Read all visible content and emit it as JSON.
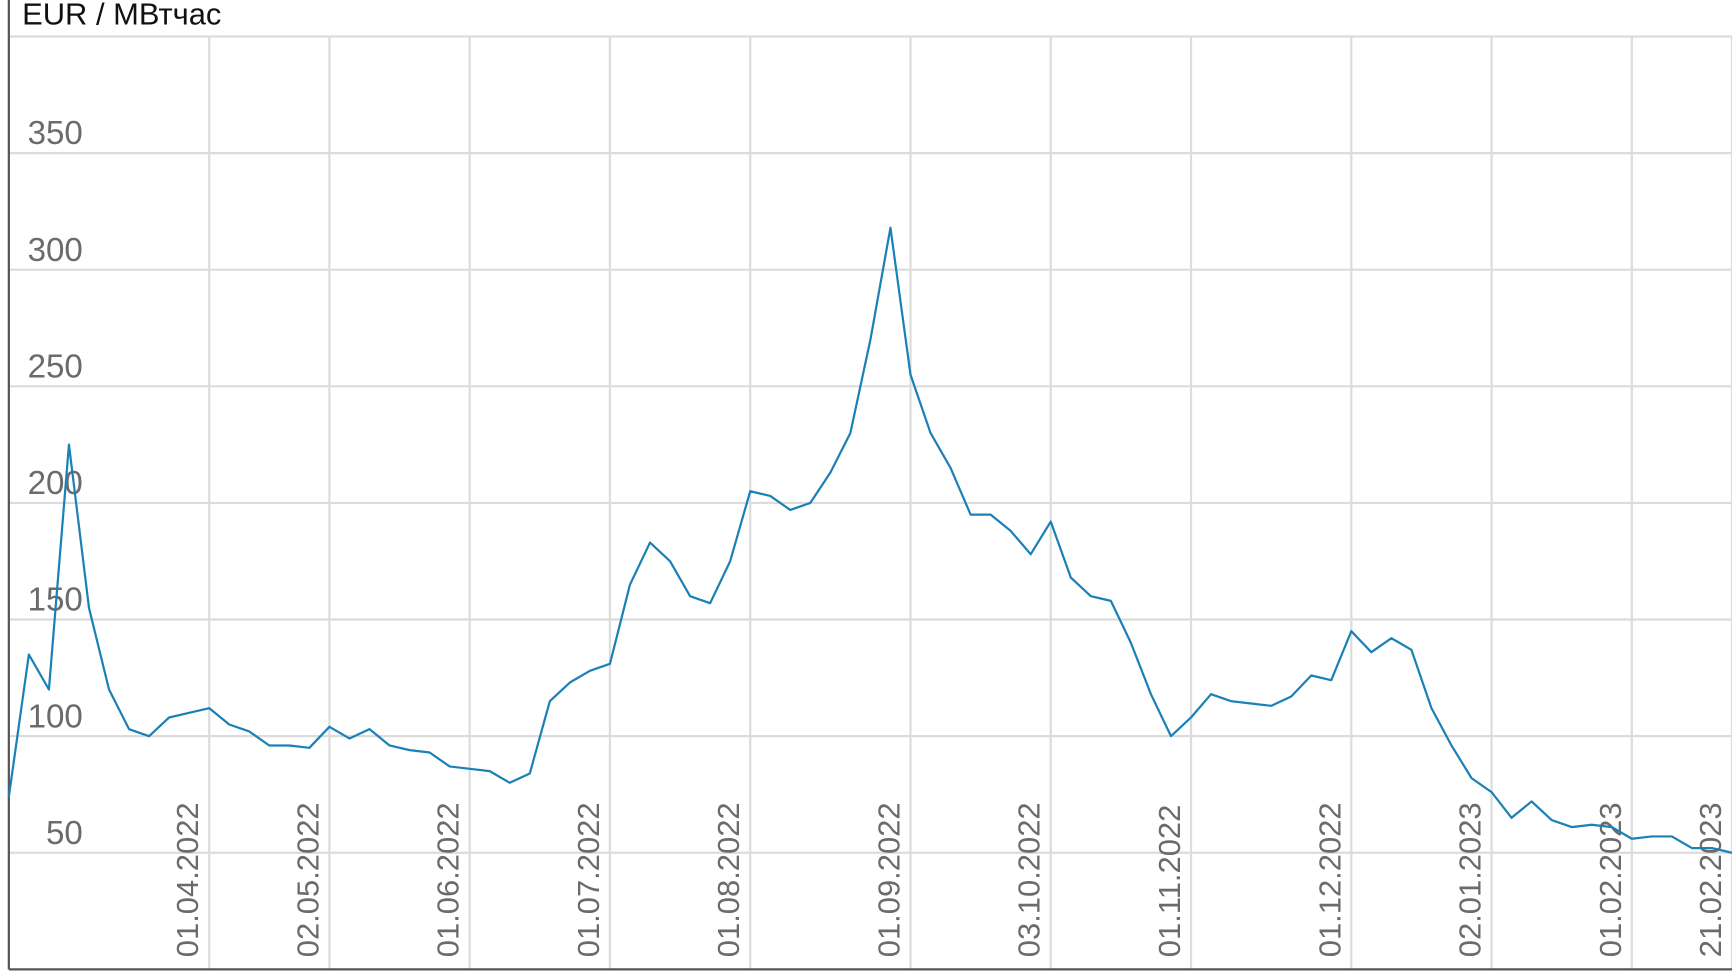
{
  "chart_data": {
    "type": "line",
    "title": "EUR / МВтчас",
    "categories": [
      null,
      null,
      null,
      null,
      null,
      null,
      null,
      null,
      null,
      null,
      "01.04.2022",
      null,
      null,
      null,
      null,
      null,
      "02.05.2022",
      null,
      null,
      null,
      null,
      null,
      null,
      "01.06.2022",
      null,
      null,
      null,
      null,
      null,
      null,
      "01.07.2022",
      null,
      null,
      null,
      null,
      null,
      null,
      "01.08.2022",
      null,
      null,
      null,
      null,
      null,
      null,
      null,
      "01.09.2022",
      null,
      null,
      null,
      null,
      null,
      null,
      "03.10.2022",
      null,
      null,
      null,
      null,
      null,
      null,
      "01.11.2022",
      null,
      null,
      null,
      null,
      null,
      null,
      null,
      "01.12.2022",
      null,
      null,
      null,
      null,
      null,
      null,
      "02.01.2023",
      null,
      null,
      null,
      null,
      null,
      null,
      "01.02.2023",
      null,
      null,
      null,
      null,
      "21.02.2023"
    ],
    "series": [
      {
        "color": "#1a80b6",
        "values": [
          74,
          135,
          120,
          225,
          155,
          120,
          103,
          100,
          108,
          110,
          112,
          105,
          102,
          96,
          96,
          95,
          104,
          99,
          103,
          96,
          94,
          93,
          87,
          86,
          85,
          80,
          84,
          115,
          123,
          128,
          131,
          165,
          183,
          175,
          160,
          157,
          175,
          205,
          203,
          197,
          200,
          213,
          230,
          270,
          318,
          255,
          230,
          215,
          195,
          195,
          188,
          178,
          192,
          168,
          160,
          158,
          140,
          118,
          100,
          108,
          118,
          115,
          114,
          113,
          117,
          126,
          124,
          145,
          136,
          142,
          137,
          112,
          96,
          82,
          76,
          65,
          72,
          64,
          61,
          62,
          61,
          56,
          57,
          57,
          52,
          52,
          50
        ]
      }
    ],
    "ylim": [
      0,
      400
    ],
    "yticks": [
      50,
      100,
      150,
      200,
      250,
      300,
      350
    ],
    "grid": true
  }
}
